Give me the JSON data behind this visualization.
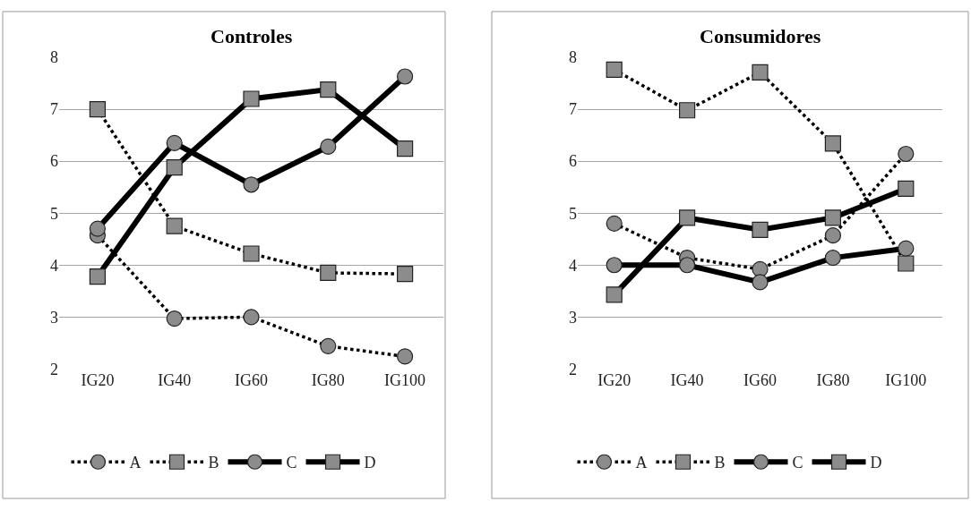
{
  "chart_data": [
    {
      "type": "line",
      "title": "Controles",
      "categories": [
        "IG20",
        "IG40",
        "IG60",
        "IG80",
        "IG100"
      ],
      "ylim": [
        2,
        8
      ],
      "yticks": [
        2,
        3,
        4,
        5,
        6,
        7,
        8
      ],
      "grid": "y",
      "legend": "bottom",
      "series": [
        {
          "name": "A",
          "color": "#000000",
          "marker": "circle",
          "line_style": "dotted",
          "values": [
            4.57,
            2.97,
            3.0,
            2.44,
            2.24
          ]
        },
        {
          "name": "B",
          "color": "#000000",
          "marker": "square",
          "line_style": "dotted",
          "values": [
            7.0,
            4.75,
            4.22,
            3.85,
            3.83
          ]
        },
        {
          "name": "C",
          "color": "#000000",
          "marker": "circle",
          "line_style": "solid",
          "values": [
            4.7,
            6.35,
            5.55,
            6.28,
            7.63
          ]
        },
        {
          "name": "D",
          "color": "#000000",
          "marker": "square",
          "line_style": "solid",
          "values": [
            3.78,
            5.88,
            7.2,
            7.38,
            6.24
          ]
        }
      ]
    },
    {
      "type": "line",
      "title": "Consumidores",
      "categories": [
        "IG20",
        "IG40",
        "IG60",
        "IG80",
        "IG100"
      ],
      "ylim": [
        2,
        8
      ],
      "yticks": [
        2,
        3,
        4,
        5,
        6,
        7,
        8
      ],
      "grid": "y",
      "legend": "bottom",
      "series": [
        {
          "name": "A",
          "color": "#000000",
          "marker": "circle",
          "line_style": "dotted",
          "values": [
            4.8,
            4.14,
            3.92,
            4.57,
            6.14
          ]
        },
        {
          "name": "B",
          "color": "#000000",
          "marker": "square",
          "line_style": "dotted",
          "values": [
            7.76,
            6.98,
            7.71,
            6.34,
            4.03
          ]
        },
        {
          "name": "C",
          "color": "#000000",
          "marker": "circle",
          "line_style": "solid",
          "values": [
            4.0,
            4.0,
            3.67,
            4.14,
            4.32
          ]
        },
        {
          "name": "D",
          "color": "#000000",
          "marker": "square",
          "line_style": "solid",
          "values": [
            3.43,
            4.91,
            4.68,
            4.91,
            5.47
          ]
        }
      ]
    }
  ]
}
